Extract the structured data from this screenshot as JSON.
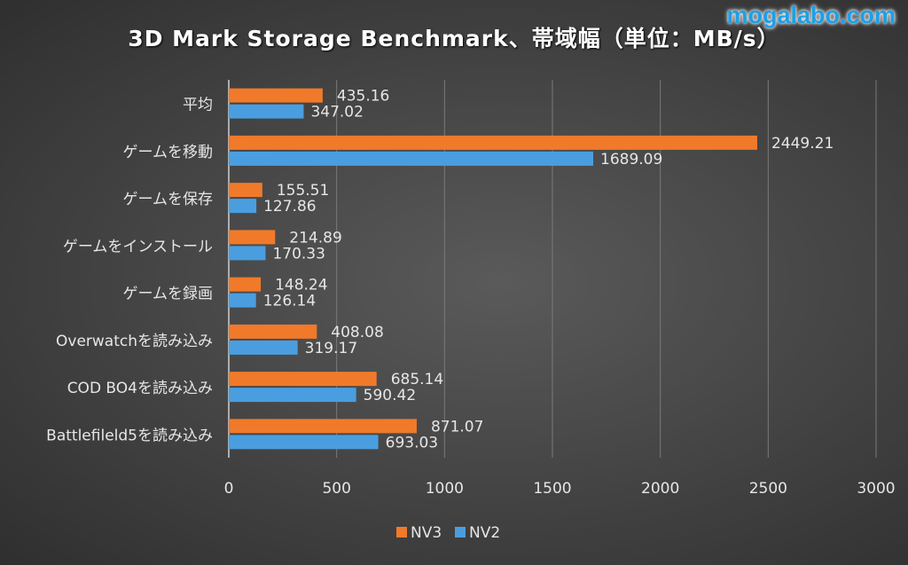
{
  "watermark": "mogalabo.com",
  "chart_data": {
    "type": "bar",
    "orientation": "horizontal",
    "title": "3D Mark Storage Benchmark、帯域幅（単位：MB/s）",
    "categories": [
      "平均",
      "ゲームを移動",
      "ゲームを保存",
      "ゲームをインストール",
      "ゲームを録画",
      "Overwatchを読み込み",
      "COD BO4を読み込み",
      "Battlefileld5を読み込み"
    ],
    "series": [
      {
        "name": "NV3",
        "color": "#f07a2a",
        "values": [
          435.16,
          2449.21,
          155.51,
          214.89,
          148.24,
          408.08,
          685.14,
          871.07
        ]
      },
      {
        "name": "NV2",
        "color": "#4a9ee0",
        "values": [
          347.02,
          1689.09,
          127.86,
          170.33,
          126.14,
          319.17,
          590.42,
          693.03
        ]
      }
    ],
    "xlim": [
      0,
      3000
    ],
    "xticks": [
      "0",
      "500",
      "1000",
      "1500",
      "2000",
      "2500",
      "3000"
    ],
    "grid": true,
    "legend": "bottom"
  }
}
